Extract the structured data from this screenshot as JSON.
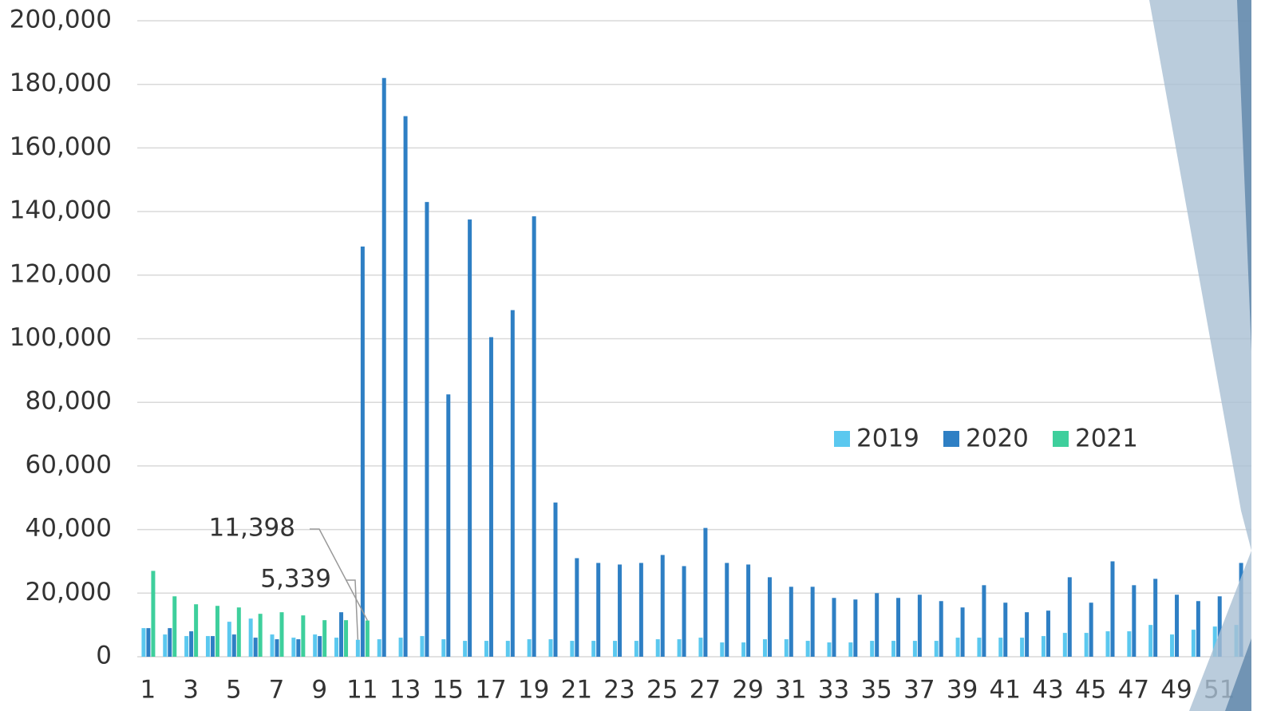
{
  "chart_data": {
    "type": "bar",
    "categories": [
      1,
      null,
      3,
      null,
      5,
      null,
      7,
      null,
      9,
      null,
      11,
      null,
      13,
      null,
      15,
      null,
      17,
      null,
      19,
      null,
      21,
      null,
      23,
      null,
      25,
      null,
      27,
      null,
      29,
      null,
      31,
      null,
      33,
      null,
      35,
      null,
      37,
      null,
      39,
      null,
      41,
      null,
      43,
      null,
      45,
      null,
      47,
      null,
      49,
      null,
      51,
      null
    ],
    "series": [
      {
        "name": "2019",
        "color": "#5bc8ef",
        "values": [
          9000,
          7000,
          6500,
          6500,
          11000,
          12000,
          7000,
          6000,
          7000,
          6000,
          5339,
          5500,
          6000,
          6500,
          5500,
          5000,
          5000,
          5000,
          5500,
          5500,
          5000,
          5000,
          5000,
          5000,
          5500,
          5500,
          6000,
          4500,
          4500,
          5500,
          5500,
          5000,
          4500,
          4500,
          5000,
          5000,
          5000,
          5000,
          6000,
          6000,
          6000,
          6000,
          6500,
          7500,
          7500,
          8000,
          8000,
          10000,
          7000,
          8500,
          9500,
          10000
        ],
        "value_labels": [
          null,
          null,
          null,
          null,
          null,
          null,
          null,
          null,
          null,
          null,
          "5,339",
          null,
          null,
          null,
          null,
          null,
          null,
          null,
          null,
          null,
          null,
          null,
          null,
          null,
          null,
          null,
          null,
          null,
          null,
          null,
          null,
          null,
          null,
          null,
          null,
          null,
          null,
          null,
          null,
          null,
          null,
          null,
          null,
          null,
          null,
          null,
          null,
          null,
          null,
          null,
          null,
          null
        ]
      },
      {
        "name": "2020",
        "color": "#2e7fc4",
        "values": [
          9000,
          9000,
          8000,
          6500,
          7000,
          6000,
          5500,
          5500,
          6500,
          14000,
          129000,
          182000,
          170000,
          143000,
          82500,
          137500,
          100500,
          109000,
          138500,
          48500,
          31000,
          29500,
          29000,
          29500,
          32000,
          28500,
          40500,
          29500,
          29000,
          25000,
          22000,
          22000,
          18500,
          18000,
          20000,
          18500,
          19500,
          17500,
          15500,
          22500,
          17000,
          14000,
          14500,
          25000,
          17000,
          30000,
          22500,
          24500,
          19500,
          17500,
          19000,
          29500
        ]
      },
      {
        "name": "2021",
        "color": "#3ecf9c",
        "values": [
          27000,
          19000,
          16500,
          16000,
          15500,
          13500,
          14000,
          13000,
          11500,
          11500,
          11398,
          null,
          null,
          null,
          null,
          null,
          null,
          null,
          null,
          null,
          null,
          null,
          null,
          null,
          null,
          null,
          null,
          null,
          null,
          null,
          null,
          null,
          null,
          null,
          null,
          null,
          null,
          null,
          null,
          null,
          null,
          null,
          null,
          null,
          null,
          null,
          null,
          null,
          null,
          null,
          null,
          null
        ],
        "value_labels": [
          null,
          null,
          null,
          null,
          null,
          null,
          null,
          null,
          null,
          null,
          "11,398",
          null,
          null,
          null,
          null,
          null,
          null,
          null,
          null,
          null,
          null,
          null,
          null,
          null,
          null,
          null,
          null,
          null,
          null,
          null,
          null,
          null,
          null,
          null,
          null,
          null,
          null,
          null,
          null,
          null,
          null,
          null,
          null,
          null,
          null,
          null,
          null,
          null,
          null,
          null,
          null,
          null
        ]
      }
    ],
    "ylim": [
      0,
      200000
    ],
    "yticks": [
      0,
      {
        "value": 20000,
        "label": "20,000"
      },
      {
        "value": 40000,
        "label": "40,000"
      },
      {
        "value": 60000,
        "label": "60,000"
      },
      {
        "value": 80000,
        "label": "80,000"
      },
      {
        "value": 100000,
        "label": "100,000"
      },
      {
        "value": 120000,
        "label": "120,000"
      },
      {
        "value": 140000,
        "label": "140,000"
      },
      {
        "value": 160000,
        "label": "160,000"
      },
      {
        "value": 180000,
        "label": "180,000"
      },
      {
        "value": 200000,
        "label": "200,000"
      }
    ],
    "grid": true,
    "legend": "right"
  }
}
